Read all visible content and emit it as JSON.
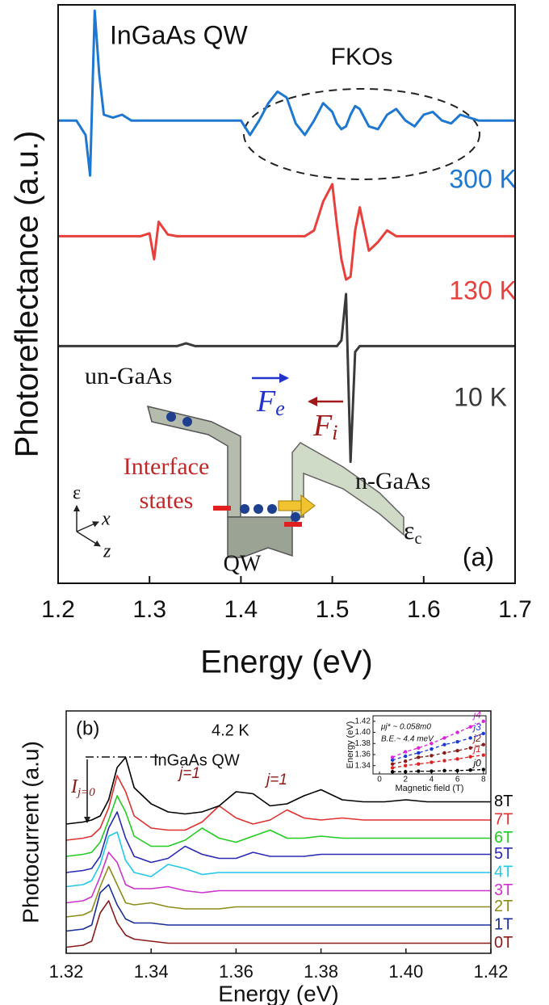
{
  "chart_data": [
    {
      "type": "line",
      "xlabel": "Energy (eV)",
      "ylabel": "Photoreflectance (a.u.)",
      "xlim": [
        1.2,
        1.7
      ],
      "xticks": [
        1.2,
        1.3,
        1.4,
        1.5,
        1.6,
        1.7
      ],
      "ylim": [
        0,
        100
      ],
      "x": [
        1.2,
        1.21,
        1.22,
        1.23,
        1.235,
        1.24,
        1.245,
        1.25,
        1.26,
        1.27,
        1.28,
        1.29,
        1.3,
        1.305,
        1.31,
        1.32,
        1.33,
        1.34,
        1.35,
        1.36,
        1.37,
        1.38,
        1.39,
        1.4,
        1.41,
        1.42,
        1.43,
        1.44,
        1.45,
        1.46,
        1.47,
        1.48,
        1.49,
        1.5,
        1.505,
        1.51,
        1.515,
        1.52,
        1.525,
        1.53,
        1.54,
        1.55,
        1.56,
        1.57,
        1.58,
        1.59,
        1.6,
        1.61,
        1.62,
        1.63,
        1.64,
        1.65,
        1.66,
        1.67,
        1.68,
        1.69,
        1.7
      ],
      "series": [
        {
          "name": "300 K",
          "color": "#1e78d2",
          "values": [
            80,
            80,
            80,
            77.5,
            70.5,
            99,
            88,
            81,
            80.5,
            81,
            80,
            80,
            80,
            80,
            80,
            80,
            80,
            80,
            80,
            80,
            80,
            80,
            80,
            80,
            77.5,
            80,
            83,
            85,
            84,
            79.5,
            77.5,
            80,
            83,
            81.5,
            79.5,
            78.5,
            79,
            81,
            82.5,
            82,
            79,
            78.5,
            81,
            82,
            80,
            79,
            81,
            81.5,
            80,
            79.5,
            81,
            80.5,
            80,
            80,
            80,
            80,
            80
          ]
        },
        {
          "name": "130 K",
          "color": "#e8403c",
          "values": [
            60,
            60,
            60,
            60,
            60,
            60,
            60,
            60,
            60,
            60,
            60,
            60,
            60.5,
            56,
            62.5,
            60.3,
            60,
            60,
            60,
            60,
            60,
            60,
            60,
            60,
            60,
            60,
            60,
            60,
            60,
            60,
            60,
            61,
            66,
            69,
            62,
            56,
            52.5,
            53,
            61,
            65,
            57.5,
            59,
            61,
            60,
            60,
            60,
            60,
            60,
            60,
            60,
            60,
            60,
            60,
            60,
            60,
            60,
            60
          ]
        },
        {
          "name": "10 K",
          "color": "#3a3a3a",
          "values": [
            41,
            41,
            41,
            41,
            41,
            41,
            41,
            41,
            41,
            41,
            41,
            41,
            41,
            41,
            41,
            41,
            41,
            41.5,
            41,
            41,
            41,
            41,
            41,
            41,
            41,
            41,
            41,
            41,
            41,
            41,
            41,
            41,
            41,
            41,
            41,
            42,
            50,
            21,
            40,
            41,
            41,
            41,
            41,
            41,
            41,
            41,
            41,
            41,
            41,
            41,
            41,
            41,
            41,
            41,
            41,
            41,
            41
          ]
        }
      ],
      "annotations": [
        "InGaAs QW",
        "FKOs",
        "(a)"
      ],
      "diagram": {
        "un_gaas": "un-GaAs",
        "interface": [
          "Interface",
          "states"
        ],
        "n_gaas": "n-GaAs",
        "qw": "QW",
        "band_edge": {
          "main": "ε",
          "sub": "c"
        },
        "field_e": {
          "main": "F",
          "sub": "e"
        },
        "field_i": {
          "main": "F",
          "sub": "i"
        },
        "axes": [
          "ε",
          "x",
          "z"
        ]
      }
    },
    {
      "type": "line",
      "xlabel": "Energy (eV)",
      "ylabel": "Photocurrent (a.u)",
      "xlim": [
        1.32,
        1.42
      ],
      "xticks": [
        1.32,
        1.34,
        1.36,
        1.38,
        {
          "value": 1.4,
          "label": "1.40"
        },
        1.42
      ],
      "ylim": [
        0,
        120
      ],
      "x": [
        1.32,
        1.324,
        1.326,
        1.328,
        1.33,
        1.332,
        1.334,
        1.336,
        1.34,
        1.344,
        1.348,
        1.352,
        1.356,
        1.36,
        1.364,
        1.368,
        1.372,
        1.376,
        1.38,
        1.385,
        1.39,
        1.395,
        1.4,
        1.405,
        1.41,
        1.415,
        1.42
      ],
      "series": [
        {
          "name": "0T",
          "color": "#8b1a1a",
          "values": [
            3,
            4,
            6,
            20,
            26,
            15,
            9,
            7,
            6,
            5,
            5,
            5,
            5,
            5,
            5,
            5,
            5,
            5,
            5,
            5,
            5,
            5,
            5,
            5,
            5,
            5,
            5
          ]
        },
        {
          "name": "1T",
          "color": "#1a2e99",
          "values": [
            11,
            12,
            14,
            30,
            34,
            24,
            17,
            15,
            15,
            14,
            14,
            14,
            14,
            14,
            14,
            14,
            14,
            14,
            14,
            14,
            14,
            14,
            14,
            14,
            14,
            14,
            14
          ]
        },
        {
          "name": "2T",
          "color": "#8c8c1a",
          "values": [
            18,
            19,
            21,
            33,
            43,
            34,
            25,
            24,
            25,
            23,
            22,
            22,
            22,
            23,
            23,
            23,
            23,
            23,
            23,
            23,
            23,
            23,
            23,
            23,
            23,
            23,
            23
          ]
        },
        {
          "name": "3T",
          "color": "#cc33cc",
          "values": [
            25,
            26,
            28,
            38,
            50,
            45,
            34,
            32,
            32,
            33,
            31,
            30,
            31,
            31,
            31,
            31,
            31,
            31,
            31,
            31,
            31,
            31,
            31,
            31,
            31,
            31,
            31
          ]
        },
        {
          "name": "4T",
          "color": "#22c8e8",
          "values": [
            33,
            34,
            36,
            44,
            58,
            60,
            46,
            40,
            38,
            44,
            42,
            39,
            40,
            40,
            40,
            40,
            40,
            40,
            40,
            40,
            40,
            40,
            40,
            40,
            40,
            40,
            40
          ]
        },
        {
          "name": "5T",
          "color": "#2a2ab3",
          "values": [
            40,
            41,
            42,
            48,
            62,
            70,
            57,
            48,
            45,
            47,
            53,
            49,
            47,
            47,
            50,
            48,
            48,
            48,
            49,
            49,
            49,
            49,
            49,
            49,
            49,
            49,
            49
          ]
        },
        {
          "name": "6T",
          "color": "#22cc22",
          "values": [
            48,
            49,
            50,
            55,
            66,
            78,
            70,
            58,
            53,
            53,
            56,
            62,
            57,
            55,
            58,
            61,
            57,
            57,
            58,
            57,
            57,
            57,
            57,
            57,
            57,
            57,
            57
          ]
        },
        {
          "name": "7T",
          "color": "#e03030",
          "values": [
            56,
            57,
            58,
            62,
            72,
            88,
            80,
            68,
            62,
            61,
            61,
            65,
            73,
            67,
            64,
            66,
            71,
            67,
            66,
            67,
            66,
            66,
            66,
            66,
            66,
            66,
            66
          ]
        },
        {
          "name": "8T",
          "color": "#000000",
          "values": [
            64,
            65,
            66,
            68,
            76,
            92,
            97,
            82,
            74,
            70,
            69,
            70,
            73,
            80,
            79,
            73,
            74,
            78,
            81,
            76,
            75,
            75,
            76,
            75,
            75,
            75,
            75
          ]
        }
      ],
      "annotations": [
        "(b)",
        "4.2 K",
        "InGaAs QW",
        "j=1",
        "j=1"
      ],
      "peak_label": {
        "main": "I",
        "sub": "j=0"
      }
    },
    {
      "type": "scatter",
      "xlabel": "Magnetic field (T)",
      "ylabel": "Energy (eV)",
      "xlim": [
        -0.5,
        8.2
      ],
      "xticks": [
        0,
        2,
        4,
        6,
        8
      ],
      "ylim": [
        1.325,
        1.43
      ],
      "yticks": [
        1.34,
        1.36,
        1.38,
        {
          "value": 1.4,
          "label": "1.40"
        },
        1.42
      ],
      "x": [
        1,
        2,
        3,
        4,
        5,
        6,
        7,
        8
      ],
      "series": [
        {
          "name": "j0",
          "color": "#000000",
          "values": [
            1.329,
            1.329,
            1.33,
            1.33,
            1.331,
            1.331,
            1.332,
            1.333
          ]
        },
        {
          "name": "j1",
          "color": "#e02020",
          "values": [
            1.336,
            1.34,
            1.343,
            1.346,
            1.349,
            1.352,
            1.356,
            1.359
          ]
        },
        {
          "name": "j2",
          "color": "#8b1a1a",
          "values": [
            1.343,
            1.348,
            1.355,
            1.358,
            1.363,
            1.367,
            1.372,
            1.378
          ]
        },
        {
          "name": "j3",
          "color": "#1a3ad6",
          "values": [
            1.35,
            1.357,
            1.363,
            1.37,
            1.378,
            1.383,
            1.39,
            1.398
          ]
        },
        {
          "name": "j4",
          "color": "#dd22dd",
          "values": [
            1.355,
            1.365,
            1.372,
            1.38,
            1.39,
            1.4,
            1.41,
            1.42
          ]
        }
      ],
      "annotations": [
        "μj* ~ 0.058m0",
        "B.E.~ 4.4 meV"
      ]
    }
  ]
}
